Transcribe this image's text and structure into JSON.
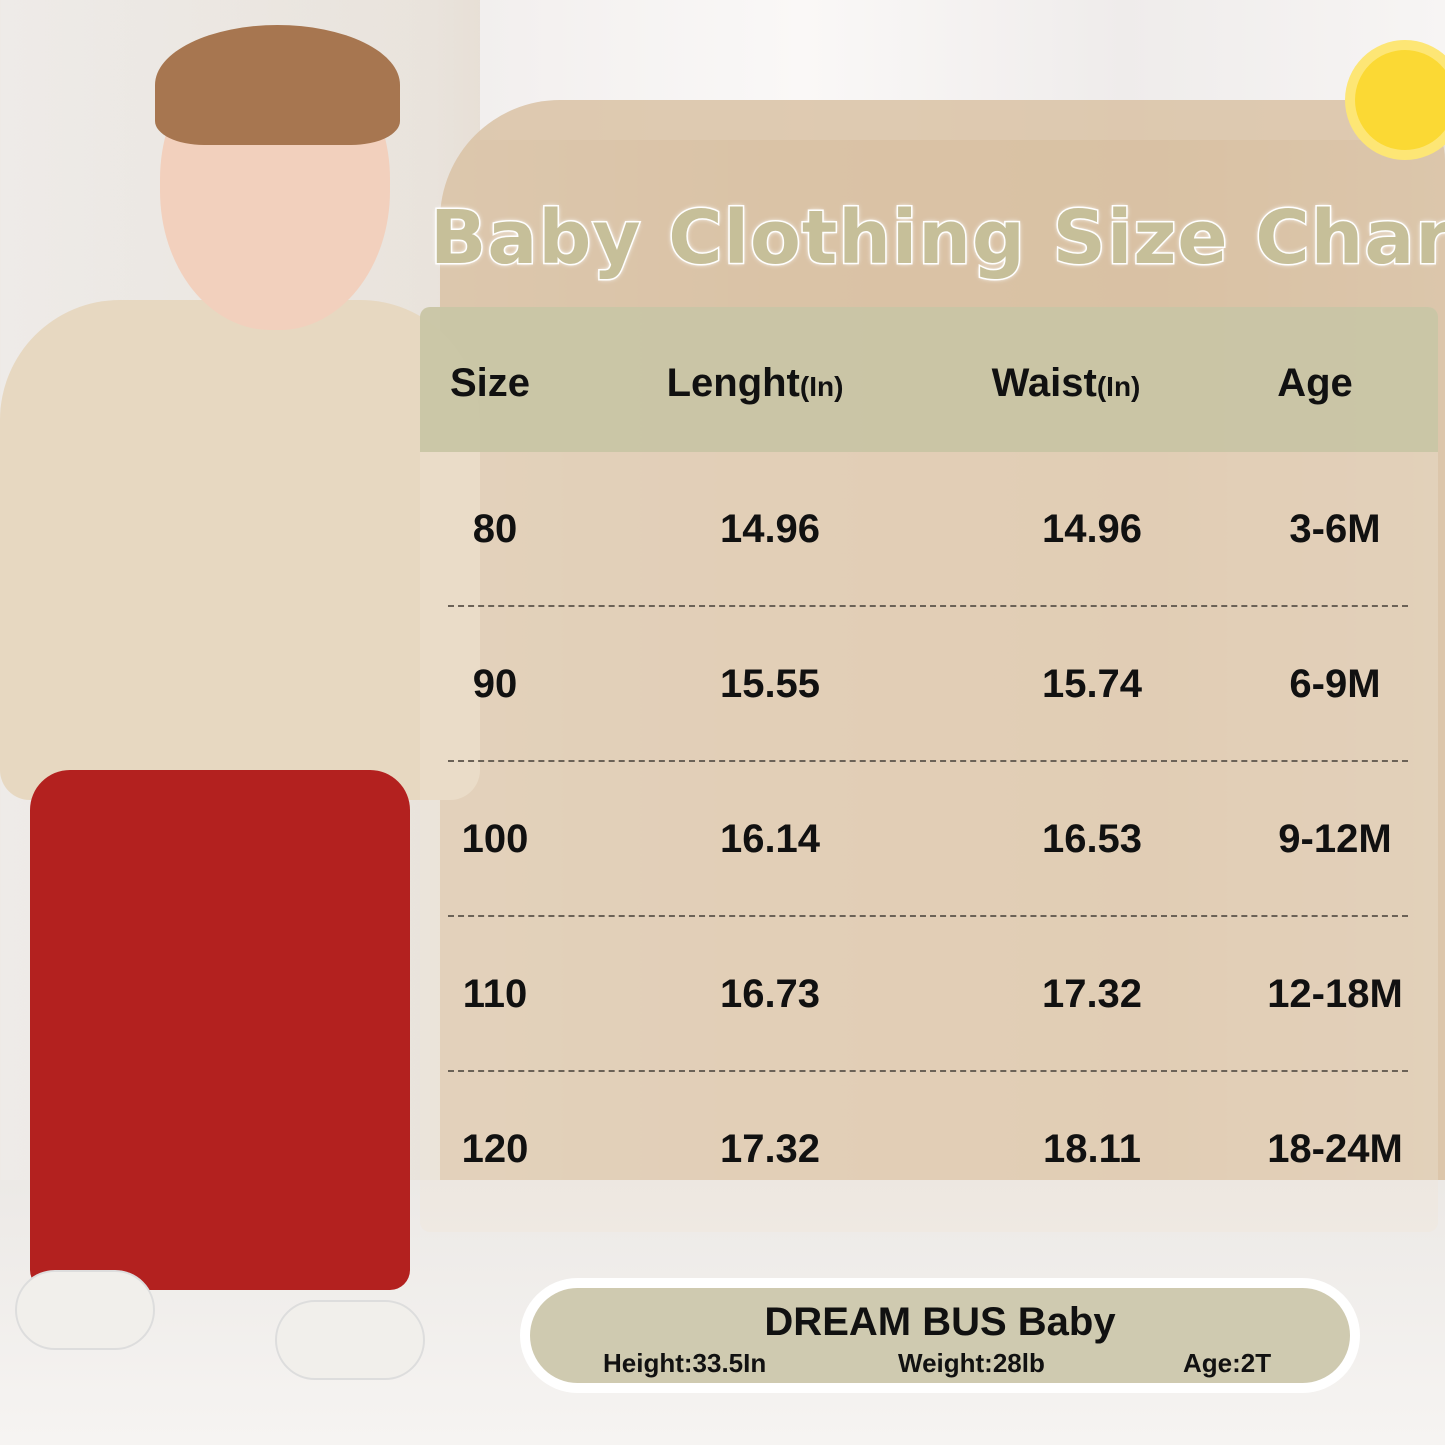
{
  "title": "Baby Clothing Size Chart",
  "table": {
    "headers": [
      {
        "label": "Size",
        "unit": ""
      },
      {
        "label": "Lenght",
        "unit": "(In)"
      },
      {
        "label": "Waist",
        "unit": "(In)"
      },
      {
        "label": "Age",
        "unit": ""
      }
    ],
    "rows": [
      [
        "80",
        "14.96",
        "14.96",
        "3-6M"
      ],
      [
        "90",
        "15.55",
        "15.74",
        "6-9M"
      ],
      [
        "100",
        "16.14",
        "16.53",
        "9-12M"
      ],
      [
        "110",
        "16.73",
        "17.32",
        "12-18M"
      ],
      [
        "120",
        "17.32",
        "18.11",
        "18-24M"
      ]
    ]
  },
  "model": {
    "brand": "DREAM BUS Baby",
    "height": "Height:33.5In",
    "weight": "Weight:28lb",
    "age": "Age:2T"
  },
  "colors": {
    "header_bg": "#c8c4a4",
    "title": "#c6bf99",
    "pants": "#b3211f",
    "sweater": "#e7d8c1"
  }
}
